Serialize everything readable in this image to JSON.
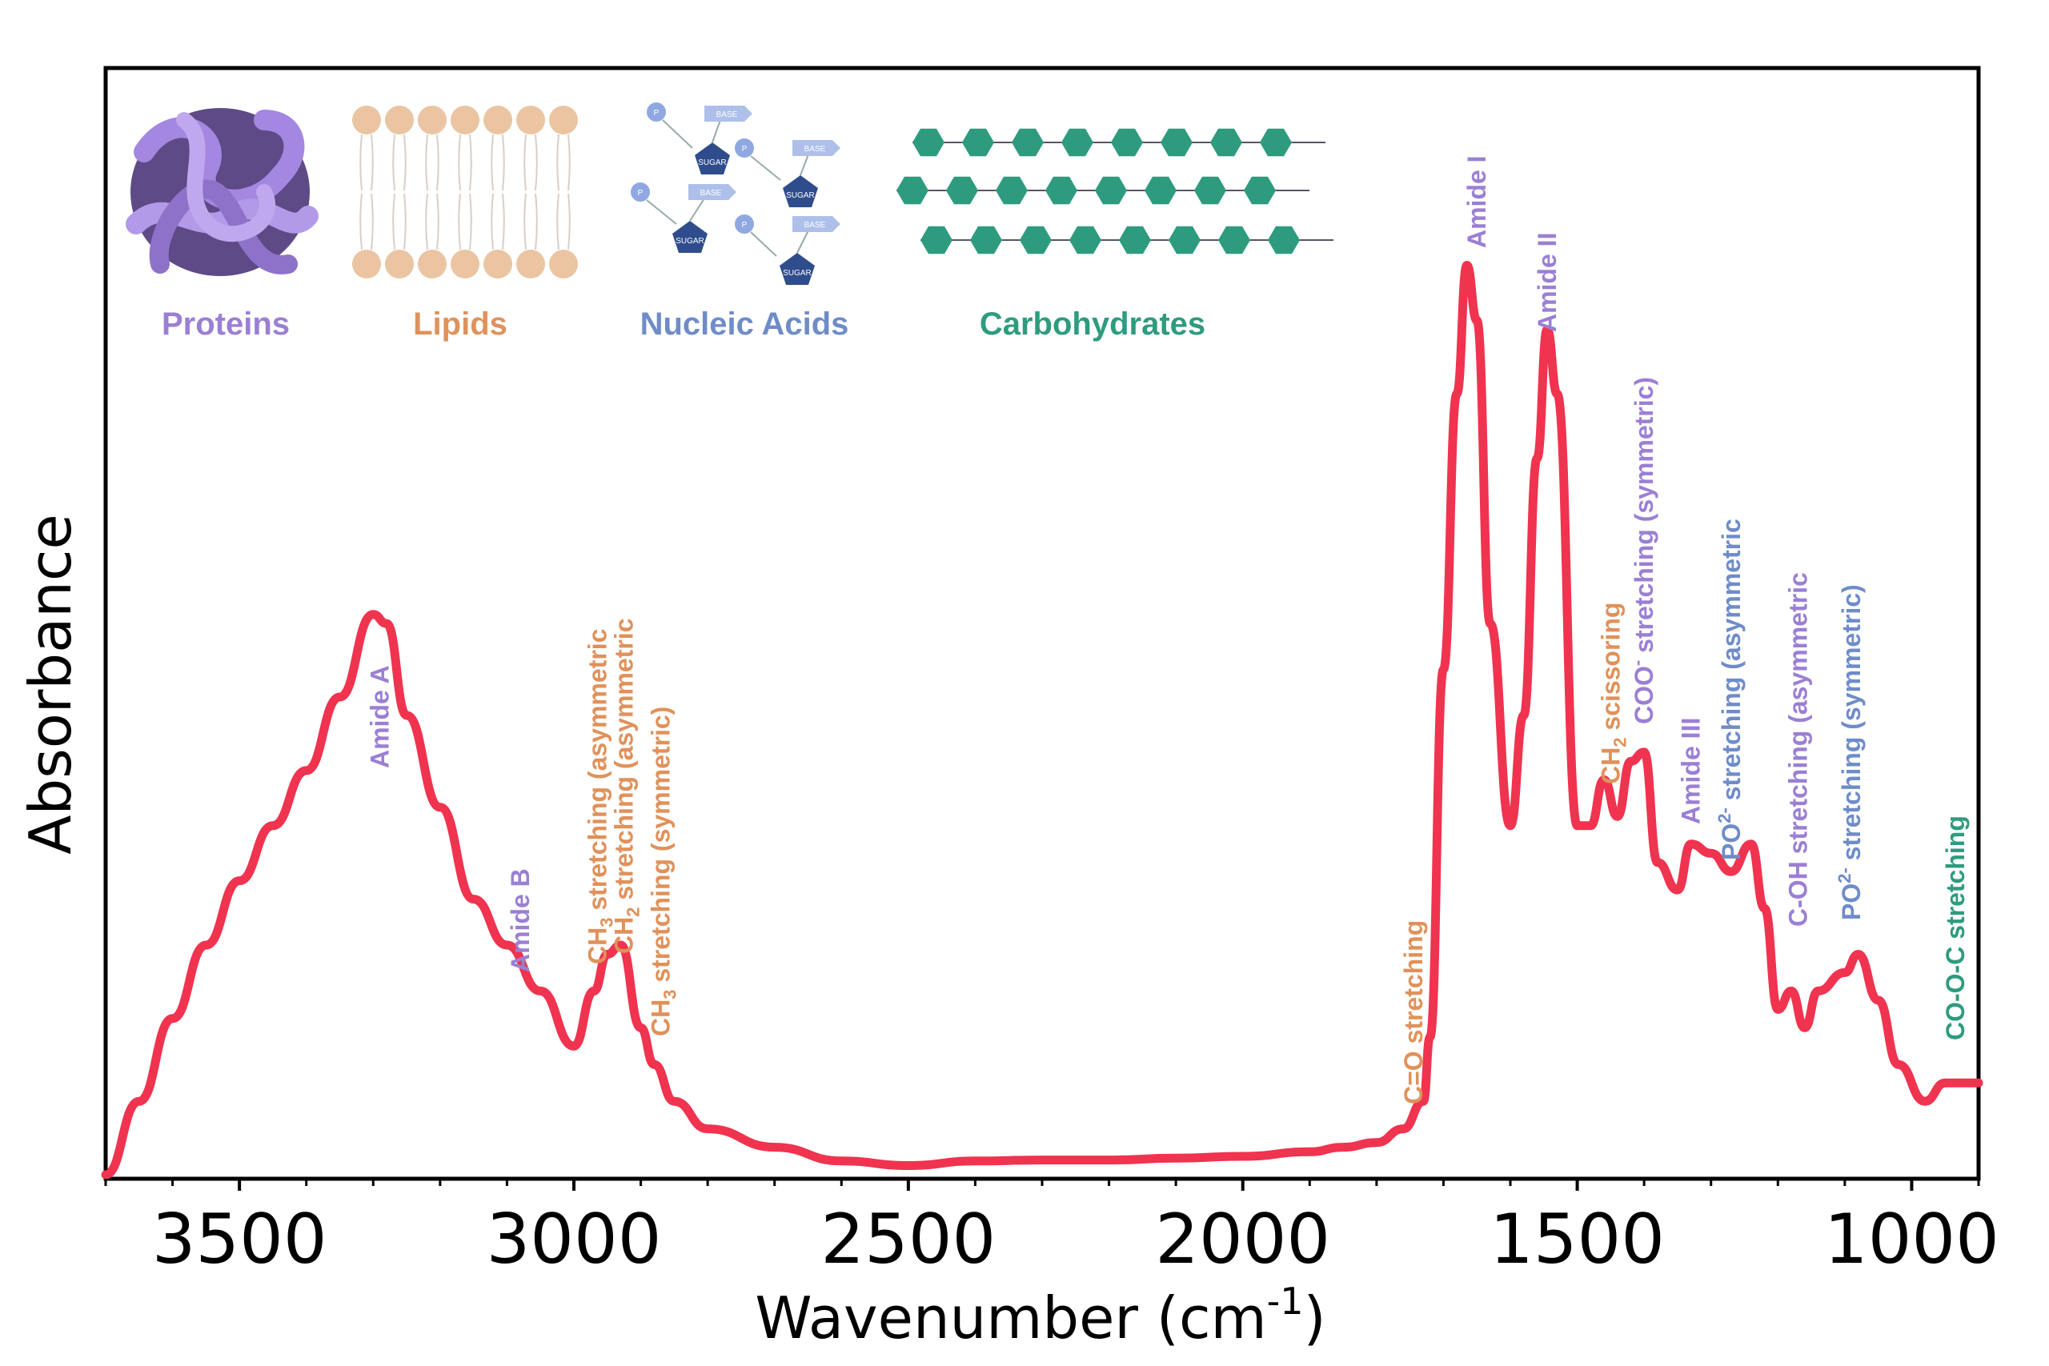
{
  "colors": {
    "protein": "#9b7fd4",
    "lipid": "#e0915a",
    "nucleic": "#6f8cc9",
    "carbohydrate": "#2e9b7f",
    "curve": "#f0334f"
  },
  "legend": [
    {
      "label": "Proteins",
      "color_key": "protein",
      "icon": "protein-structure-icon"
    },
    {
      "label": "Lipids",
      "color_key": "lipid",
      "icon": "lipid-bilayer-icon"
    },
    {
      "label": "Nucleic Acids",
      "color_key": "nucleic",
      "icon": "nucleic-acid-icon"
    },
    {
      "label": "Carbohydrates",
      "color_key": "carbohydrate",
      "icon": "carbohydrate-chain-icon"
    }
  ],
  "icon_text": {
    "base": "BASE",
    "sugar": "SUGAR",
    "phosphate": "P"
  },
  "chart_data": {
    "type": "line",
    "xlabel": "Wavenumber (cm",
    "xlabel_sup": "-1",
    "xlabel_end": ")",
    "ylabel": "Absorbance",
    "x_reversed": true,
    "xlim": [
      3700,
      900
    ],
    "ylim": [
      0,
      1
    ],
    "x_ticks": [
      3500,
      3000,
      2500,
      2000,
      1500,
      1000
    ],
    "grid": false,
    "series": [
      {
        "color_key": "curve",
        "x": [
          3700,
          3650,
          3600,
          3550,
          3500,
          3450,
          3400,
          3350,
          3300,
          3280,
          3250,
          3200,
          3150,
          3100,
          3050,
          3000,
          2970,
          2950,
          2930,
          2900,
          2880,
          2850,
          2800,
          2700,
          2600,
          2500,
          2400,
          2300,
          2200,
          2100,
          2000,
          1900,
          1850,
          1800,
          1760,
          1730,
          1720,
          1700,
          1680,
          1665,
          1650,
          1630,
          1600,
          1580,
          1560,
          1545,
          1530,
          1500,
          1480,
          1460,
          1440,
          1420,
          1400,
          1380,
          1350,
          1330,
          1300,
          1270,
          1240,
          1220,
          1200,
          1180,
          1160,
          1140,
          1100,
          1080,
          1050,
          1020,
          980,
          950,
          920,
          900
        ],
        "y": [
          0.0,
          0.08,
          0.17,
          0.25,
          0.32,
          0.38,
          0.44,
          0.52,
          0.61,
          0.6,
          0.5,
          0.4,
          0.3,
          0.25,
          0.2,
          0.14,
          0.2,
          0.24,
          0.25,
          0.16,
          0.12,
          0.08,
          0.05,
          0.03,
          0.015,
          0.01,
          0.015,
          0.016,
          0.016,
          0.018,
          0.02,
          0.025,
          0.03,
          0.035,
          0.05,
          0.08,
          0.15,
          0.55,
          0.85,
          0.99,
          0.93,
          0.6,
          0.38,
          0.5,
          0.78,
          0.92,
          0.85,
          0.38,
          0.38,
          0.43,
          0.39,
          0.45,
          0.46,
          0.34,
          0.31,
          0.36,
          0.35,
          0.33,
          0.36,
          0.29,
          0.18,
          0.2,
          0.16,
          0.2,
          0.22,
          0.24,
          0.19,
          0.12,
          0.08,
          0.1,
          0.1,
          0.1
        ]
      }
    ],
    "annotations": [
      {
        "text": "Amide A",
        "x": 3290,
        "color_key": "protein"
      },
      {
        "text": "Amide B",
        "x": 3080,
        "color_key": "protein"
      },
      {
        "text_pre": "CH",
        "sub": "3",
        "text_post": " stretching (asymmetric",
        "x": 2965,
        "color_key": "lipid"
      },
      {
        "text_pre": "CH",
        "sub": "2",
        "text_post": " stretching (asymmetric",
        "x": 2925,
        "color_key": "lipid"
      },
      {
        "text_pre": "CH",
        "sub": "3",
        "text_post": " stretching (symmetric)",
        "x": 2870,
        "color_key": "lipid"
      },
      {
        "text": "C=O stretching",
        "x": 1745,
        "color_key": "lipid"
      },
      {
        "text": "Amide I",
        "x": 1650,
        "color_key": "protein"
      },
      {
        "text": "Amide II",
        "x": 1545,
        "color_key": "protein"
      },
      {
        "text_pre": "CH",
        "sub": "2",
        "text_post": " scissoring",
        "x": 1450,
        "color_key": "lipid"
      },
      {
        "text_pre": "COO",
        "sup": "-",
        "text_post": " stretching (symmetric)",
        "x": 1400,
        "color_key": "protein"
      },
      {
        "text": "Amide III",
        "x": 1330,
        "color_key": "protein"
      },
      {
        "text_pre": "PO",
        "sup": "2-",
        "text_post": " stretching (asymmetric",
        "x": 1270,
        "color_key": "nucleic"
      },
      {
        "text": "C-OH stretching (asymmetric",
        "x": 1170,
        "color_key": "protein"
      },
      {
        "text_pre": "PO",
        "sup": "2-",
        "text_post": " stretching (symmetric)",
        "x": 1090,
        "color_key": "nucleic"
      },
      {
        "text": "CO-O-C stretching",
        "x": 935,
        "color_key": "carbohydrate"
      }
    ]
  }
}
